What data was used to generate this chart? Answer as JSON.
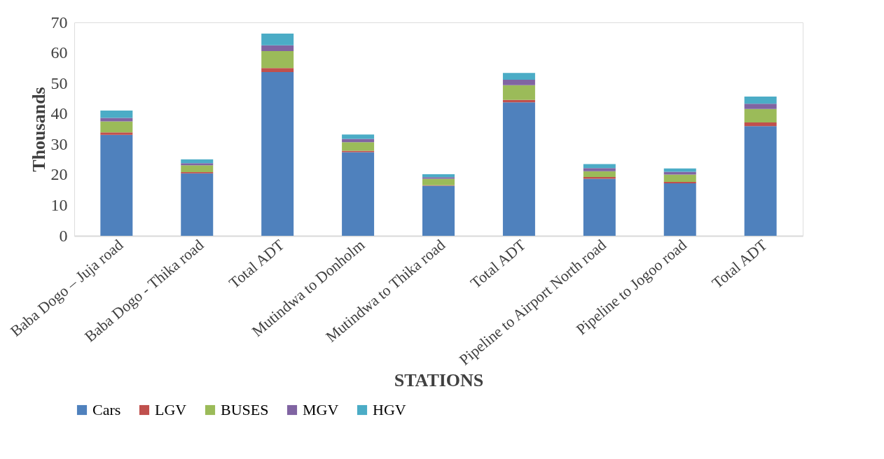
{
  "chart_data": {
    "type": "bar",
    "stacked": true,
    "xlabel": "STATIONS",
    "ylabel": "Thousands",
    "categories": [
      "Baba Dogo – Juja road",
      "Baba Dogo - Thika road",
      "Total ADT",
      "Mutindwa to Donholm",
      "Mutindwa to Thika road",
      "Total ADT",
      "Pipeline to Airport North road",
      "Pipeline to Jogoo road",
      "Total ADT"
    ],
    "series": [
      {
        "name": "Cars",
        "color": "#4f81bd",
        "values": [
          33.1,
          20.5,
          53.7,
          27.4,
          16.4,
          43.8,
          18.7,
          17.2,
          36.0
        ]
      },
      {
        "name": "LGV",
        "color": "#c0504d",
        "values": [
          0.8,
          0.4,
          1.3,
          0.5,
          0.2,
          0.8,
          0.6,
          0.5,
          1.2
        ]
      },
      {
        "name": "BUSES",
        "color": "#9bbb59",
        "values": [
          3.6,
          2.2,
          5.6,
          2.8,
          2.1,
          4.8,
          1.9,
          2.4,
          4.4
        ]
      },
      {
        "name": "MGV",
        "color": "#8064a2",
        "values": [
          1.2,
          0.7,
          1.9,
          1.1,
          0.5,
          1.8,
          1.0,
          0.9,
          1.7
        ]
      },
      {
        "name": "HGV",
        "color": "#4bacc6",
        "values": [
          2.4,
          1.3,
          3.8,
          1.4,
          1.0,
          2.2,
          1.3,
          1.1,
          2.4
        ]
      }
    ],
    "ylim": [
      0,
      70
    ],
    "yticks": [
      0,
      10,
      20,
      30,
      40,
      50,
      60,
      70
    ],
    "grid": false,
    "legend": "bottom"
  }
}
